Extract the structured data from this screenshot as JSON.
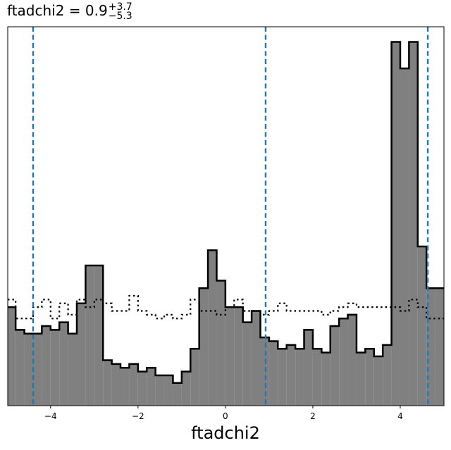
{
  "chart_data": {
    "type": "histogram",
    "title": {
      "prefix": "ftadchi2 = 0.9",
      "upper": "+3.7",
      "lower": "−5.3"
    },
    "xlabel": "ftadchi2",
    "xlim": [
      -4.98,
      5.0
    ],
    "ylim": [
      0,
      1.0
    ],
    "grid": false,
    "x_ticks": [
      {
        "value": -4,
        "label": "−4"
      },
      {
        "value": -2,
        "label": "−2"
      },
      {
        "value": 0,
        "label": "0"
      },
      {
        "value": 2,
        "label": "2"
      },
      {
        "value": 4,
        "label": "4"
      }
    ],
    "vlines": [
      {
        "x": -4.4,
        "color": "#1f77b4",
        "style": "dashed"
      },
      {
        "x": 0.92,
        "color": "#1f77b4",
        "style": "dashed"
      },
      {
        "x": 4.63,
        "color": "#1f77b4",
        "style": "dashed"
      }
    ],
    "bin_edges": [
      -5.0,
      -4.8,
      -4.6,
      -4.4,
      -4.2,
      -4.0,
      -3.8,
      -3.6,
      -3.4,
      -3.2,
      -3.0,
      -2.8,
      -2.6,
      -2.4,
      -2.2,
      -2.0,
      -1.8,
      -1.6,
      -1.4,
      -1.2,
      -1.0,
      -0.8,
      -0.6,
      -0.4,
      -0.2,
      0.0,
      0.2,
      0.4,
      0.6,
      0.8,
      1.0,
      1.2,
      1.4,
      1.6,
      1.8,
      2.0,
      2.2,
      2.4,
      2.6,
      2.8,
      3.0,
      3.2,
      3.4,
      3.6,
      3.8,
      4.0,
      4.2,
      4.4,
      4.6,
      4.8,
      5.0
    ],
    "series": [
      {
        "style": "filled",
        "fill": "#808080",
        "edge": "#000000",
        "values": [
          0.26,
          0.2,
          0.19,
          0.19,
          0.21,
          0.2,
          0.22,
          0.19,
          0.27,
          0.37,
          0.37,
          0.12,
          0.11,
          0.1,
          0.11,
          0.09,
          0.1,
          0.08,
          0.08,
          0.06,
          0.09,
          0.15,
          0.31,
          0.41,
          0.33,
          0.26,
          0.26,
          0.22,
          0.25,
          0.18,
          0.17,
          0.15,
          0.16,
          0.15,
          0.2,
          0.15,
          0.14,
          0.21,
          0.23,
          0.24,
          0.14,
          0.15,
          0.13,
          0.16,
          0.96,
          0.89,
          0.96,
          0.42,
          0.31,
          0.31
        ]
      },
      {
        "style": "dotted",
        "fill": "none",
        "edge": "#000000",
        "values": [
          0.28,
          0.23,
          0.23,
          0.26,
          0.28,
          0.23,
          0.27,
          0.24,
          0.28,
          0.26,
          0.28,
          0.27,
          0.25,
          0.25,
          0.29,
          0.25,
          0.24,
          0.23,
          0.24,
          0.23,
          0.24,
          0.28,
          0.25,
          0.25,
          0.24,
          0.26,
          0.28,
          0.25,
          0.25,
          0.24,
          0.25,
          0.27,
          0.25,
          0.25,
          0.25,
          0.25,
          0.24,
          0.25,
          0.26,
          0.27,
          0.26,
          0.26,
          0.26,
          0.26,
          0.26,
          0.25,
          0.28,
          0.26,
          0.23,
          0.23
        ]
      }
    ]
  }
}
